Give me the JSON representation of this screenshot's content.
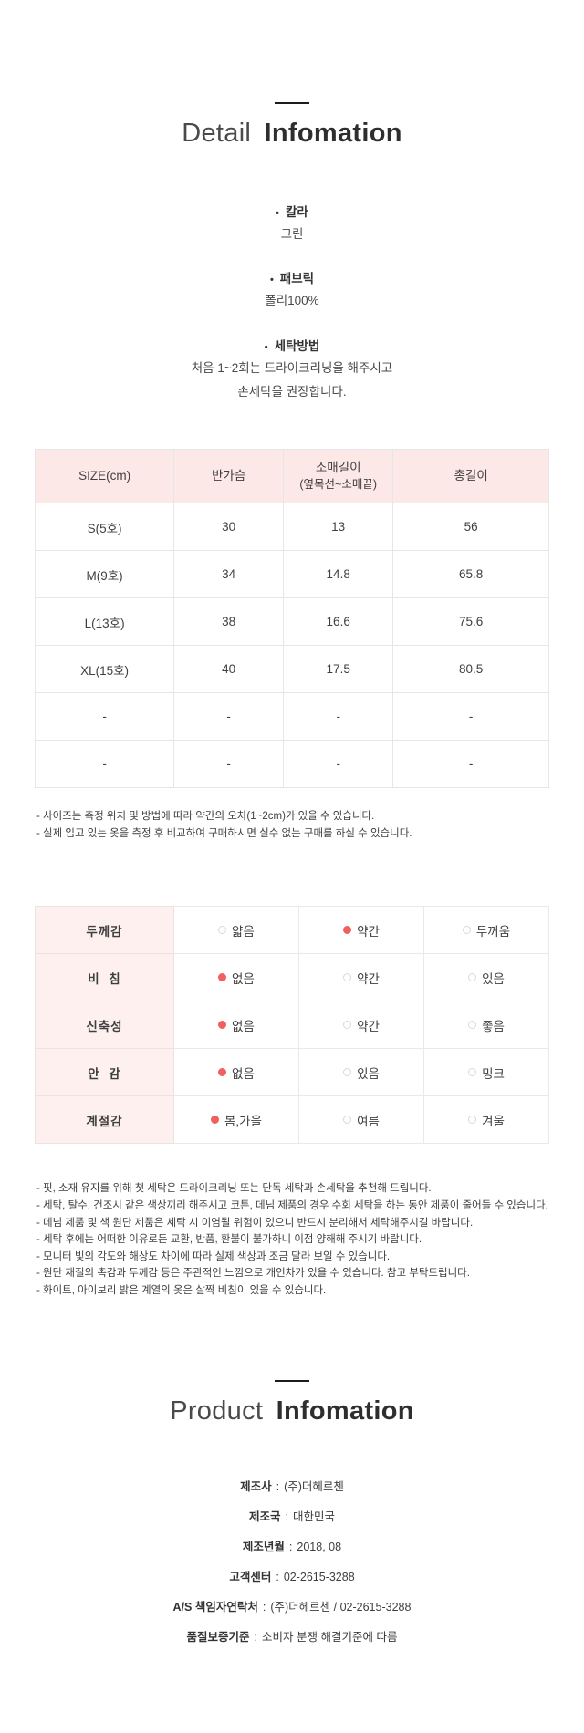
{
  "colors": {
    "header_pink": "#fce8e6",
    "label_pink": "#fdf0ee",
    "radio_red": "#f15f5f",
    "border_gray": "#e6e6e6",
    "heading_line": "#1c1c1c"
  },
  "detail_section": {
    "title_light": "Detail",
    "title_bold": "Infomation",
    "bullet_icon": "•",
    "bullets": [
      {
        "label": "칼라",
        "lines": [
          "그린"
        ]
      },
      {
        "label": "패브릭",
        "lines": [
          "폴리100%"
        ]
      },
      {
        "label": "세탁방법",
        "lines": [
          "처음 1~2회는 드라이크리닝을 해주시고",
          "손세탁을 권장합니다."
        ]
      }
    ]
  },
  "size_table": {
    "headers": [
      "SIZE(cm)",
      "반가슴",
      "소매길이",
      "총길이"
    ],
    "header_sub": "(옆목선~소매끝)",
    "rows": [
      [
        "S(5호)",
        "30",
        "13",
        "56"
      ],
      [
        "M(9호)",
        "34",
        "14.8",
        "65.8"
      ],
      [
        "L(13호)",
        "38",
        "16.6",
        "75.6"
      ],
      [
        "XL(15호)",
        "40",
        "17.5",
        "80.5"
      ],
      [
        "-",
        "-",
        "-",
        "-"
      ],
      [
        "-",
        "-",
        "-",
        "-"
      ]
    ]
  },
  "size_notes": [
    "- 사이즈는 측정 위치 및 방법에 따라 약간의 오차(1~2cm)가 있을 수 있습니다.",
    "- 실제 입고 있는 옷을 측정 후 비교하여 구매하시면 실수 없는 구매를 하실 수 있습니다."
  ],
  "attr_table": {
    "rows": [
      {
        "label": "두께감",
        "options": [
          {
            "text": "얇음",
            "selected": false
          },
          {
            "text": "약간",
            "selected": true
          },
          {
            "text": "두꺼움",
            "selected": false
          }
        ]
      },
      {
        "label": "비  침",
        "options": [
          {
            "text": "없음",
            "selected": true
          },
          {
            "text": "약간",
            "selected": false
          },
          {
            "text": "있음",
            "selected": false
          }
        ]
      },
      {
        "label": "신축성",
        "options": [
          {
            "text": "없음",
            "selected": true
          },
          {
            "text": "약간",
            "selected": false
          },
          {
            "text": "좋음",
            "selected": false
          }
        ]
      },
      {
        "label": "안  감",
        "options": [
          {
            "text": "없음",
            "selected": true
          },
          {
            "text": "있음",
            "selected": false
          },
          {
            "text": "밍크",
            "selected": false
          }
        ]
      },
      {
        "label": "계절감",
        "options": [
          {
            "text": "봄,가을",
            "selected": true
          },
          {
            "text": "여름",
            "selected": false
          },
          {
            "text": "겨울",
            "selected": false
          }
        ]
      }
    ]
  },
  "care_notes": [
    "- 핏, 소재 유지를 위해 첫 세탁은 드라이크리닝 또는 단독 세탁과 손세탁을 추천해 드립니다.",
    "- 세탁, 탈수, 건조시 같은 색상끼리 해주시고 코튼, 데님 제품의 경우 수회 세탁을 하는 동안 제품이 줄어들 수 있습니다.",
    "- 데님 제품 및 색 원단 제품은 세탁 시 이염될 위험이 있으니 반드시 분리해서 세탁해주시길 바랍니다.",
    "- 세탁 후에는 어떠한 이유로든 교환, 반품, 환불이 불가하니 이점 양해해 주시기 바랍니다.",
    "- 모니터 빛의 각도와 해상도 차이에 따라 실제 색상과 조금 달라 보일 수 있습니다.",
    "- 원단 재질의 촉감과 두께감 등은 주관적인 느낌으로 개인차가 있을 수 있습니다. 참고 부탁드립니다.",
    "- 화이트, 아이보리 밝은 계열의 옷은 살짝 비침이 있을 수 있습니다."
  ],
  "product_section": {
    "title_light": "Product",
    "title_bold": "Infomation",
    "separator": ":",
    "items": [
      {
        "label": "제조사",
        "value": "(주)더헤르첸"
      },
      {
        "label": "제조국",
        "value": "대한민국"
      },
      {
        "label": "제조년월",
        "value": "2018, 08"
      },
      {
        "label": "고객센터",
        "value": "02-2615-3288"
      },
      {
        "label": "A/S 책임자연락처",
        "value": "(주)더헤르첸 / 02-2615-3288"
      },
      {
        "label": "품질보증기준",
        "value": "소비자 분쟁 해결기준에 따름"
      }
    ]
  }
}
